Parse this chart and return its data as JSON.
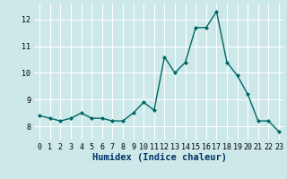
{
  "x": [
    0,
    1,
    2,
    3,
    4,
    5,
    6,
    7,
    8,
    9,
    10,
    11,
    12,
    13,
    14,
    15,
    16,
    17,
    18,
    19,
    20,
    21,
    22,
    23
  ],
  "y": [
    8.4,
    8.3,
    8.2,
    8.3,
    8.5,
    8.3,
    8.3,
    8.2,
    8.2,
    8.5,
    8.9,
    8.6,
    10.6,
    10.0,
    10.4,
    11.7,
    11.7,
    12.3,
    10.4,
    9.9,
    9.2,
    8.2,
    8.2,
    7.8
  ],
  "line_color": "#006666",
  "marker": "D",
  "marker_size": 2.0,
  "linewidth": 1.0,
  "bg_color": "#cce8e8",
  "grid_color": "#ffffff",
  "xlabel": "Humidex (Indice chaleur)",
  "xlabel_fontsize": 7.5,
  "xlabel_color": "#003366",
  "tick_label_color": "#000000",
  "tick_fontsize": 6.0,
  "ylim": [
    7.5,
    12.6
  ],
  "xlim": [
    -0.5,
    23.5
  ],
  "yticks": [
    8,
    9,
    10,
    11,
    12
  ],
  "xticks": [
    0,
    1,
    2,
    3,
    4,
    5,
    6,
    7,
    8,
    9,
    10,
    11,
    12,
    13,
    14,
    15,
    16,
    17,
    18,
    19,
    20,
    21,
    22,
    23
  ]
}
